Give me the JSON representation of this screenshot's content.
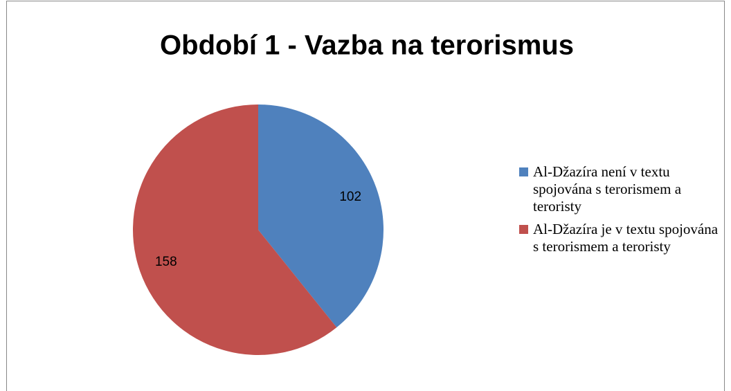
{
  "chart_data": {
    "type": "pie",
    "title": "Období 1 - Vazba na terorismus",
    "categories": [
      "Al-Džazíra není v textu spojována s terorismem a teroristy",
      "Al-Džazíra je v textu spojována s terorismem a teroristy"
    ],
    "values": [
      102,
      158
    ],
    "colors": [
      "#4f81bd",
      "#c0504d"
    ],
    "legend": "right"
  }
}
